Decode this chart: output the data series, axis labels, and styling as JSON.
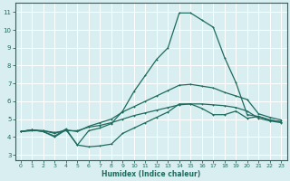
{
  "xlabel": "Humidex (Indice chaleur)",
  "xlim": [
    -0.5,
    23.5
  ],
  "ylim": [
    2.7,
    11.5
  ],
  "x": [
    0,
    1,
    2,
    3,
    4,
    5,
    6,
    7,
    8,
    9,
    10,
    11,
    12,
    13,
    14,
    15,
    16,
    17,
    18,
    19,
    20,
    21,
    22,
    23
  ],
  "line1": [
    4.3,
    4.4,
    4.3,
    4.0,
    4.4,
    3.55,
    3.45,
    3.5,
    3.6,
    4.2,
    4.5,
    4.8,
    5.1,
    5.4,
    5.85,
    5.85,
    5.6,
    5.25,
    5.25,
    5.45,
    5.05,
    5.15,
    4.95,
    4.85
  ],
  "line2": [
    4.3,
    4.4,
    4.3,
    4.05,
    4.45,
    3.55,
    4.35,
    4.5,
    4.75,
    5.45,
    6.55,
    7.45,
    8.35,
    9.0,
    10.95,
    10.95,
    10.55,
    10.15,
    8.45,
    7.05,
    5.25,
    5.15,
    4.95,
    4.85
  ],
  "line3": [
    4.3,
    4.4,
    4.35,
    4.2,
    4.4,
    4.3,
    4.6,
    4.8,
    5.0,
    5.4,
    5.7,
    6.0,
    6.3,
    6.6,
    6.9,
    6.95,
    6.85,
    6.75,
    6.5,
    6.3,
    6.1,
    5.3,
    5.1,
    4.95
  ],
  "line4": [
    4.3,
    4.35,
    4.35,
    4.25,
    4.35,
    4.35,
    4.55,
    4.65,
    4.8,
    5.0,
    5.2,
    5.35,
    5.5,
    5.65,
    5.8,
    5.85,
    5.85,
    5.8,
    5.75,
    5.65,
    5.45,
    5.05,
    4.9,
    4.8
  ],
  "bg_color": "#d8eef0",
  "grid_color": "#c8dfe0",
  "line_color": "#1e6b5e",
  "yticks": [
    3,
    4,
    5,
    6,
    7,
    8,
    9,
    10,
    11
  ],
  "xticks": [
    0,
    1,
    2,
    3,
    4,
    5,
    6,
    7,
    8,
    9,
    10,
    11,
    12,
    13,
    14,
    15,
    16,
    17,
    18,
    19,
    20,
    21,
    22,
    23
  ]
}
